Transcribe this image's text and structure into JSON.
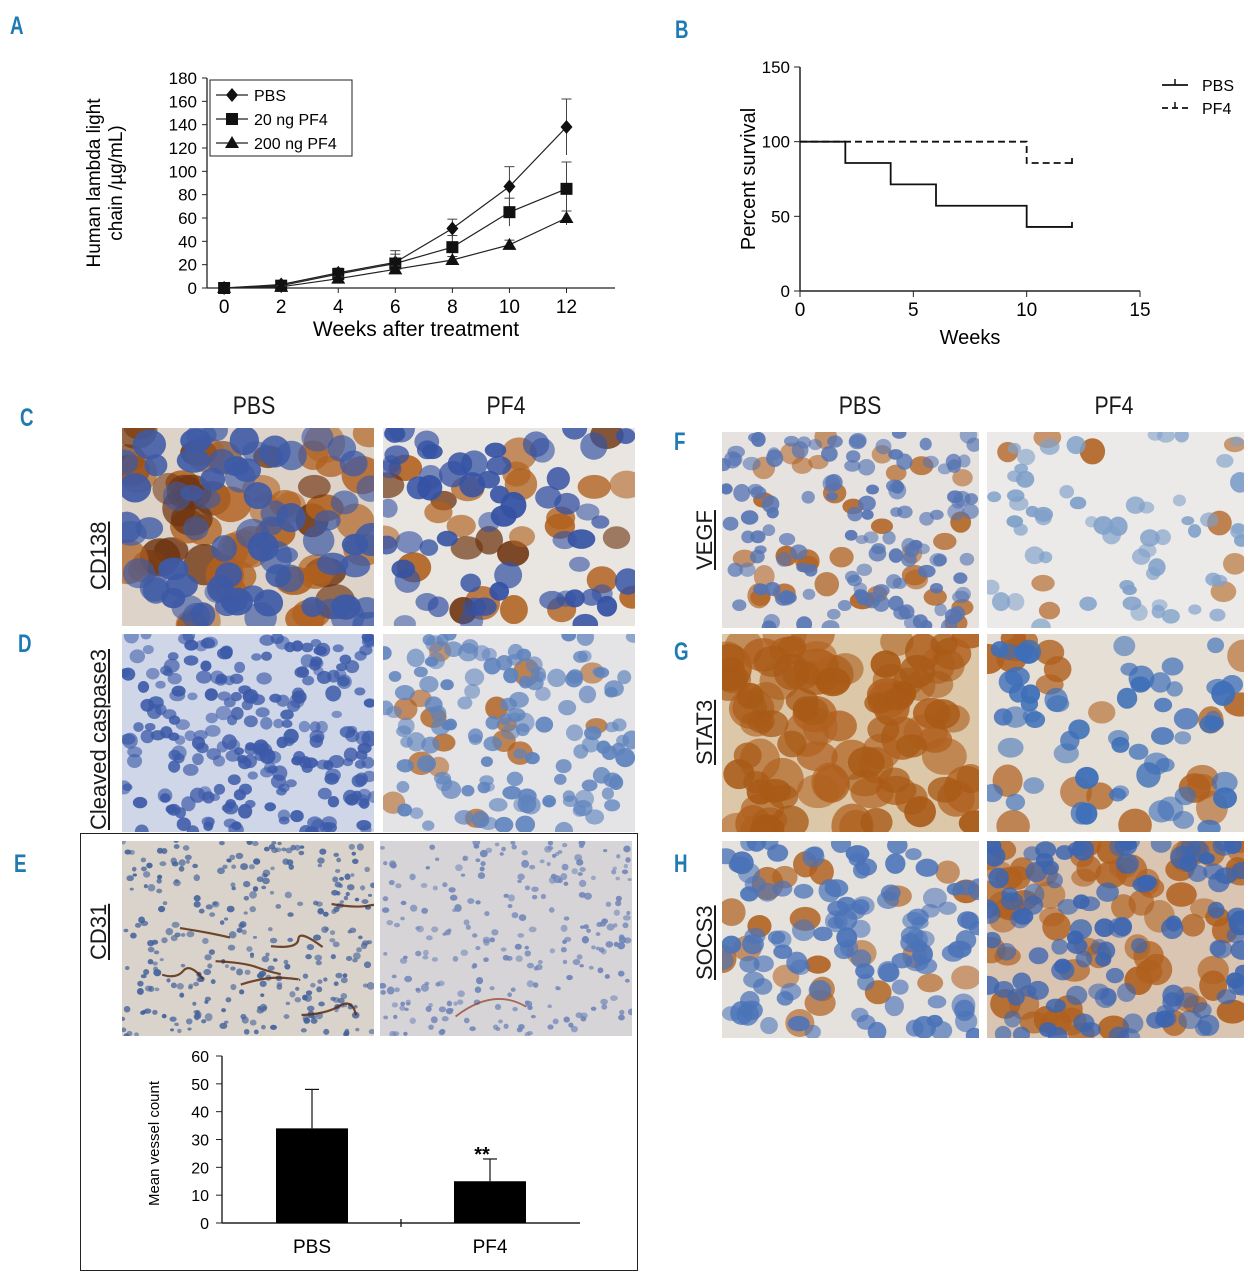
{
  "panels": {
    "a": "A",
    "b": "B",
    "c": "C",
    "d": "D",
    "e": "E",
    "f": "F",
    "g": "G",
    "h": "H"
  },
  "columns": {
    "pbs": "PBS",
    "pf4": "PF4"
  },
  "row_labels": {
    "cd138": "CD138",
    "cleaved": "Cleaved caspase3",
    "cd31": "CD31",
    "vegf": "VEGF",
    "stat3": "STAT3",
    "socs3": "SOCS3"
  },
  "stain_colors": {
    "brown": "#b0601e",
    "dark_brown": "#6e3410",
    "blue_nucleus": "#3c5fb0",
    "background": "#e8e4de"
  },
  "chart_data": [
    {
      "type": "line",
      "ylabel": "Human lambda light chain /µg/mL)",
      "xlabel": "Weeks after treatment",
      "xticks": [
        0,
        2,
        4,
        6,
        8,
        10,
        12
      ],
      "yticks": [
        0,
        20,
        40,
        60,
        80,
        100,
        120,
        140,
        160,
        180
      ],
      "xlim": [
        -0.6,
        13.7
      ],
      "ylim": [
        0,
        180
      ],
      "legend_position": "top-left",
      "x": [
        0,
        2,
        4,
        6,
        8,
        10,
        12
      ],
      "series": [
        {
          "name": "PBS",
          "marker": "diamond",
          "values": [
            0,
            3,
            13,
            22,
            51,
            87,
            138
          ],
          "err": [
            0,
            2,
            4,
            10,
            8,
            17,
            24
          ]
        },
        {
          "name": "20 ng PF4",
          "marker": "square",
          "values": [
            0,
            2,
            12,
            21,
            35,
            65,
            85
          ],
          "err": [
            0,
            2,
            3,
            8,
            10,
            12,
            23
          ]
        },
        {
          "name": "200 ng PF4",
          "marker": "triangle",
          "values": [
            0,
            1,
            8,
            16,
            24,
            37,
            60
          ],
          "err": [
            0,
            1,
            2,
            3,
            3,
            4,
            6
          ]
        }
      ]
    },
    {
      "type": "line",
      "ylabel": "Percent survival",
      "xlabel": "Weeks",
      "xticks": [
        0,
        5,
        10,
        15
      ],
      "yticks": [
        0,
        50,
        100,
        150
      ],
      "xlim": [
        0,
        15
      ],
      "ylim": [
        0,
        150
      ],
      "legend_position": "top-right",
      "series": [
        {
          "name": "PBS",
          "style": "solid",
          "steps": [
            [
              0,
              100
            ],
            [
              2,
              85.7
            ],
            [
              4,
              71.4
            ],
            [
              6,
              57.1
            ],
            [
              10,
              42.9
            ],
            [
              12,
              42.9
            ]
          ]
        },
        {
          "name": "PF4",
          "style": "dashed",
          "steps": [
            [
              0,
              100
            ],
            [
              10,
              85.7
            ],
            [
              12,
              85.7
            ]
          ]
        }
      ]
    },
    {
      "type": "bar",
      "ylabel": "Mean vessel count",
      "categories": [
        "PBS",
        "PF4"
      ],
      "values": [
        34,
        15
      ],
      "err": [
        14,
        8
      ],
      "annotations": [
        "",
        "**"
      ],
      "yticks": [
        0,
        10,
        20,
        30,
        40,
        50,
        60
      ],
      "ylim": [
        0,
        60
      ],
      "bar_color": "#000000"
    }
  ]
}
